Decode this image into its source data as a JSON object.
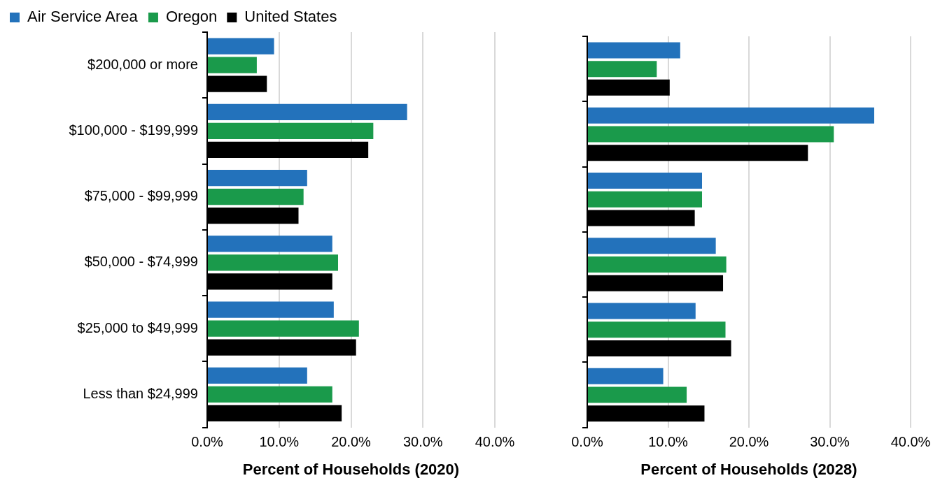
{
  "chart_data": [
    {
      "type": "bar",
      "orientation": "horizontal",
      "xlabel": "Percent of Households (2020)",
      "categories": [
        "$200,000 or more",
        "$100,000 - $199,999",
        "$75,000 - $99,999",
        "$50,000 - $74,999",
        "$25,000 to $49,999",
        "Less than $24,999"
      ],
      "series": [
        {
          "name": "Air Service Area",
          "color": "#2372bb",
          "values": [
            9.3,
            27.8,
            13.9,
            17.4,
            17.6,
            13.9
          ]
        },
        {
          "name": "Oregon",
          "color": "#1a9a4b",
          "values": [
            6.9,
            23.1,
            13.4,
            18.2,
            21.1,
            17.4
          ]
        },
        {
          "name": "United States",
          "color": "#000000",
          "values": [
            8.3,
            22.4,
            12.7,
            17.4,
            20.7,
            18.7
          ]
        }
      ],
      "xlim": [
        0,
        40
      ],
      "xticks": [
        {
          "value": 0,
          "label": "0.0%"
        },
        {
          "value": 10,
          "label": "10.0%"
        },
        {
          "value": 20,
          "label": "20.0%"
        },
        {
          "value": 30,
          "label": "30.0%"
        },
        {
          "value": 40,
          "label": "40.0%"
        }
      ],
      "grid": "x",
      "legend": "top left"
    },
    {
      "type": "bar",
      "orientation": "horizontal",
      "xlabel": "Percent of Households (2028)",
      "categories": [
        null,
        null,
        null,
        null,
        null,
        null
      ],
      "series": [
        {
          "color": "#2372bb",
          "values": [
            11.5,
            35.5,
            14.2,
            15.9,
            13.4,
            9.4
          ]
        },
        {
          "color": "#1a9a4b",
          "values": [
            8.6,
            30.5,
            14.2,
            17.2,
            17.1,
            12.3
          ]
        },
        {
          "color": "#000000",
          "values": [
            10.2,
            27.3,
            13.3,
            16.8,
            17.8,
            14.5
          ]
        }
      ],
      "xlim": [
        0,
        40
      ],
      "xticks": [
        {
          "value": 0,
          "label": "0.0%"
        },
        {
          "value": 10,
          "label": "10.0%"
        },
        {
          "value": 20,
          "label": "20.0%"
        },
        {
          "value": 30,
          "label": "30.0%"
        },
        {
          "value": 40,
          "label": "40.0%"
        }
      ],
      "grid": "x",
      "tick_labels": "x"
    }
  ]
}
